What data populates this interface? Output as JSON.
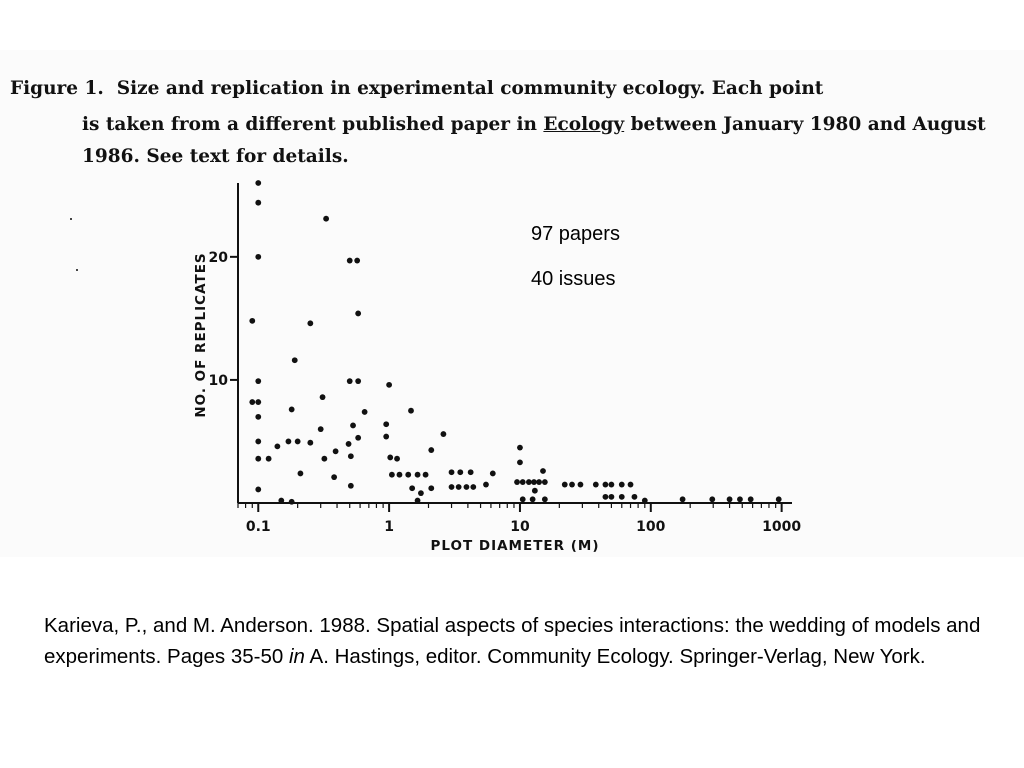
{
  "caption": {
    "label": "Figure 1.",
    "line1_rest": "Size and replication in experimental community ecology.  Each point",
    "line2_start": "is taken from a different published paper in",
    "journal": "Ecology",
    "line2_end": "between January 1980 and August",
    "line3": "1986.  See text for details."
  },
  "annotations": {
    "papers": "97 papers",
    "issues": "40 issues"
  },
  "reference": {
    "before_italic": "Karieva, P., and M. Anderson. 1988. Spatial aspects of species interactions: the wedding of models and experiments. Pages 35-50 ",
    "italic": "in",
    "after_italic": " A. Hastings, editor. Community Ecology. Springer-Verlag, New York."
  },
  "chart_data": {
    "type": "scatter",
    "xlabel": "PLOT DIAMETER (M)",
    "ylabel": "NO. OF REPLICATES",
    "x_scale": "log",
    "xlim": [
      0.07,
      1200
    ],
    "ylim": [
      0,
      26
    ],
    "x_ticks": [
      0.1,
      1,
      10,
      100,
      1000
    ],
    "x_tick_labels": [
      "0.1",
      "1",
      "10",
      "100",
      "1000"
    ],
    "y_ticks": [
      10,
      20
    ],
    "y_tick_labels": [
      "10",
      "20"
    ],
    "grid": false,
    "marker_color": "#111111",
    "points": [
      {
        "x": 0.1,
        "y": 26
      },
      {
        "x": 0.1,
        "y": 24.4
      },
      {
        "x": 0.1,
        "y": 20
      },
      {
        "x": 0.09,
        "y": 14.8
      },
      {
        "x": 0.1,
        "y": 9.9
      },
      {
        "x": 0.09,
        "y": 8.2
      },
      {
        "x": 0.1,
        "y": 8.2
      },
      {
        "x": 0.1,
        "y": 7
      },
      {
        "x": 0.1,
        "y": 5
      },
      {
        "x": 0.1,
        "y": 3.6
      },
      {
        "x": 0.12,
        "y": 3.6
      },
      {
        "x": 0.1,
        "y": 1.1
      },
      {
        "x": 0.14,
        "y": 4.6
      },
      {
        "x": 0.17,
        "y": 5
      },
      {
        "x": 0.19,
        "y": 11.6
      },
      {
        "x": 0.18,
        "y": 7.6
      },
      {
        "x": 0.2,
        "y": 5
      },
      {
        "x": 0.21,
        "y": 2.4
      },
      {
        "x": 0.25,
        "y": 14.6
      },
      {
        "x": 0.25,
        "y": 4.9
      },
      {
        "x": 0.18,
        "y": 0.1
      },
      {
        "x": 0.15,
        "y": 0.2
      },
      {
        "x": 0.33,
        "y": 23.1
      },
      {
        "x": 0.31,
        "y": 8.6
      },
      {
        "x": 0.3,
        "y": 6
      },
      {
        "x": 0.32,
        "y": 3.6
      },
      {
        "x": 0.39,
        "y": 4.2
      },
      {
        "x": 0.38,
        "y": 2.1
      },
      {
        "x": 0.5,
        "y": 19.7
      },
      {
        "x": 0.57,
        "y": 19.7
      },
      {
        "x": 0.58,
        "y": 15.4
      },
      {
        "x": 0.5,
        "y": 9.9
      },
      {
        "x": 0.58,
        "y": 9.9
      },
      {
        "x": 0.65,
        "y": 7.4
      },
      {
        "x": 0.53,
        "y": 6.3
      },
      {
        "x": 0.58,
        "y": 5.3
      },
      {
        "x": 0.49,
        "y": 4.8
      },
      {
        "x": 0.51,
        "y": 3.8
      },
      {
        "x": 0.51,
        "y": 1.4
      },
      {
        "x": 1,
        "y": 9.6
      },
      {
        "x": 1.47,
        "y": 7.5
      },
      {
        "x": 0.95,
        "y": 6.4
      },
      {
        "x": 0.95,
        "y": 5.4
      },
      {
        "x": 1.02,
        "y": 3.7
      },
      {
        "x": 1.15,
        "y": 3.6
      },
      {
        "x": 1.05,
        "y": 2.3
      },
      {
        "x": 1.2,
        "y": 2.3
      },
      {
        "x": 1.4,
        "y": 2.3
      },
      {
        "x": 1.65,
        "y": 2.3
      },
      {
        "x": 1.9,
        "y": 2.3
      },
      {
        "x": 1.5,
        "y": 1.2
      },
      {
        "x": 1.75,
        "y": 0.8
      },
      {
        "x": 1.65,
        "y": 0.2
      },
      {
        "x": 2.1,
        "y": 1.2
      },
      {
        "x": 2.1,
        "y": 4.3
      },
      {
        "x": 2.6,
        "y": 5.6
      },
      {
        "x": 3,
        "y": 2.5
      },
      {
        "x": 3.5,
        "y": 2.5
      },
      {
        "x": 4.2,
        "y": 2.5
      },
      {
        "x": 3,
        "y": 1.3
      },
      {
        "x": 3.4,
        "y": 1.3
      },
      {
        "x": 3.9,
        "y": 1.3
      },
      {
        "x": 4.4,
        "y": 1.3
      },
      {
        "x": 5.5,
        "y": 1.5
      },
      {
        "x": 6.2,
        "y": 2.4
      },
      {
        "x": 9.5,
        "y": 1.7
      },
      {
        "x": 10.5,
        "y": 1.7
      },
      {
        "x": 11.7,
        "y": 1.7
      },
      {
        "x": 12.8,
        "y": 1.7
      },
      {
        "x": 14,
        "y": 1.7
      },
      {
        "x": 15.5,
        "y": 1.7
      },
      {
        "x": 10,
        "y": 4.5
      },
      {
        "x": 10,
        "y": 3.3
      },
      {
        "x": 15,
        "y": 2.6
      },
      {
        "x": 10.5,
        "y": 0.3
      },
      {
        "x": 12.5,
        "y": 0.3
      },
      {
        "x": 15.5,
        "y": 0.3
      },
      {
        "x": 13,
        "y": 1
      },
      {
        "x": 22,
        "y": 1.5
      },
      {
        "x": 25,
        "y": 1.5
      },
      {
        "x": 29,
        "y": 1.5
      },
      {
        "x": 38,
        "y": 1.5
      },
      {
        "x": 45,
        "y": 1.5
      },
      {
        "x": 50,
        "y": 1.5
      },
      {
        "x": 60,
        "y": 1.5
      },
      {
        "x": 70,
        "y": 1.5
      },
      {
        "x": 45,
        "y": 0.5
      },
      {
        "x": 50,
        "y": 0.5
      },
      {
        "x": 60,
        "y": 0.5
      },
      {
        "x": 75,
        "y": 0.5
      },
      {
        "x": 90,
        "y": 0.2
      },
      {
        "x": 175,
        "y": 0.3
      },
      {
        "x": 295,
        "y": 0.3
      },
      {
        "x": 400,
        "y": 0.3
      },
      {
        "x": 480,
        "y": 0.3
      },
      {
        "x": 580,
        "y": 0.3
      },
      {
        "x": 950,
        "y": 0.3
      }
    ]
  }
}
